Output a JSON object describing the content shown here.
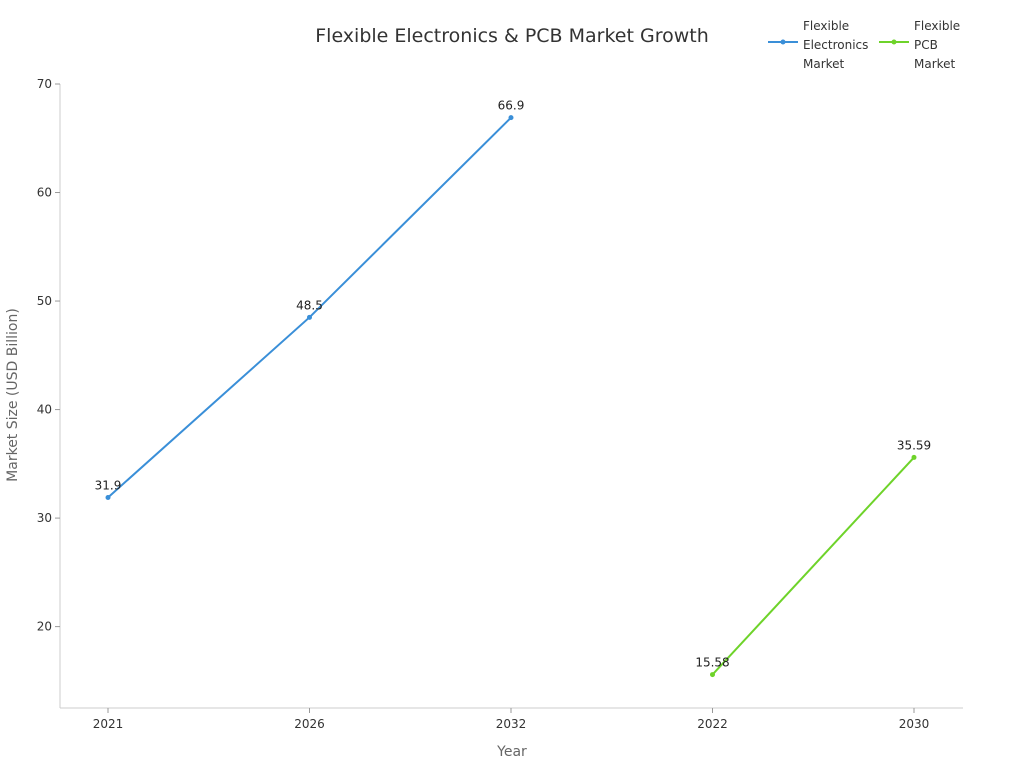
{
  "chart_data": {
    "type": "line",
    "title": "Flexible Electronics & PCB Market Growth",
    "xlabel": "Year",
    "ylabel": "Market Size (USD Billion)",
    "categories": [
      "2021",
      "2026",
      "2032",
      "2022",
      "2030"
    ],
    "y_ticks": [
      "20",
      "30",
      "40",
      "50",
      "60",
      "70"
    ],
    "ylim": [
      12.5,
      70
    ],
    "grid": false,
    "legend_position": "top-right",
    "series": [
      {
        "name": "Flexible Electronics Market",
        "legend_lines": [
          "Flexible",
          "Electronics",
          "Market"
        ],
        "color": "#3a8fd8",
        "points": [
          {
            "x": "2021",
            "y": 31.9,
            "label": "31.9"
          },
          {
            "x": "2026",
            "y": 48.5,
            "label": "48.5"
          },
          {
            "x": "2032",
            "y": 66.9,
            "label": "66.9"
          }
        ]
      },
      {
        "name": "Flexible PCB Market",
        "legend_lines": [
          "Flexible",
          "PCB",
          "Market"
        ],
        "color": "#6ed32a",
        "points": [
          {
            "x": "2022",
            "y": 15.58,
            "label": "15.58"
          },
          {
            "x": "2030",
            "y": 35.59,
            "label": "35.59"
          }
        ]
      }
    ]
  }
}
